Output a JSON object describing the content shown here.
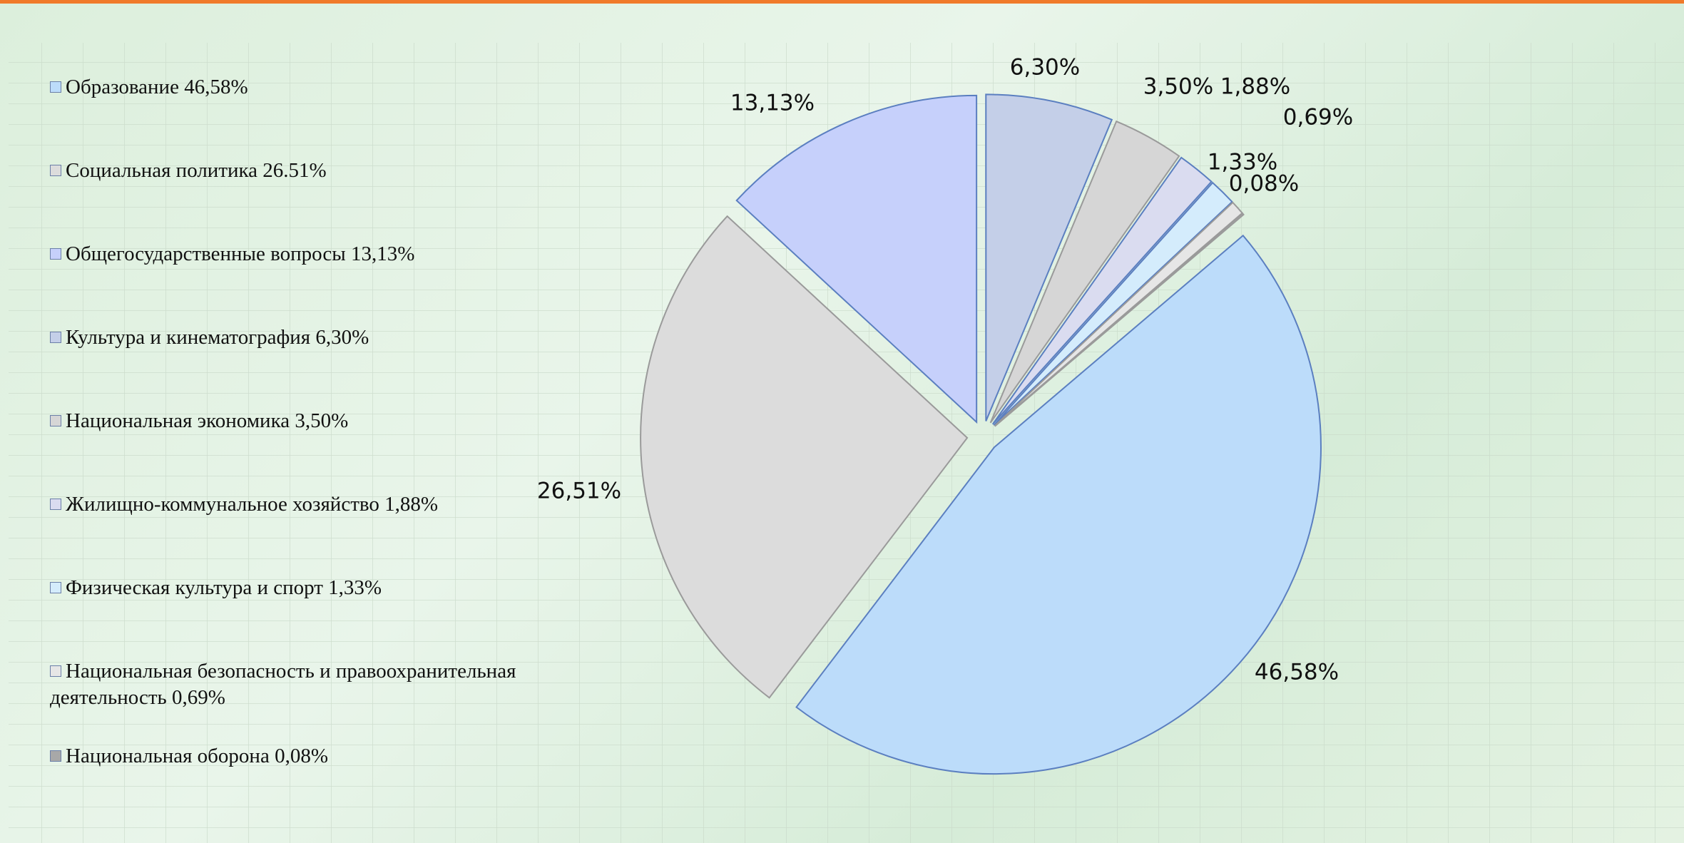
{
  "chart_data": {
    "type": "pie",
    "categories": [
      "Образование 46,58%",
      "Социальная политика 26.51%",
      "Общегосударственные вопросы 13,13%",
      "Культура и кинематография 6,30%",
      "Национальная экономика 3,50%",
      "Жилищно-коммунальное хозяйство 1,88%",
      "Физическая культура и спорт 1,33%",
      "Национальная безопасность и правоохранительная деятельность 0,69%",
      "Национальная оборона 0,08%"
    ],
    "values": [
      46.58,
      26.51,
      13.13,
      6.3,
      3.5,
      1.88,
      1.33,
      0.69,
      0.08
    ],
    "value_labels": [
      "46,58%",
      "26,51%",
      "13,13%",
      "6,30%",
      "3,50%",
      "1,88%",
      "1,33%",
      "0,69%",
      "0,08%"
    ],
    "colors": [
      "#bcdcfa",
      "#dcdcdc",
      "#c6d0fb",
      "#c4cfe8",
      "#d6d6d6",
      "#dadcf0",
      "#d4ecfc",
      "#e6e6e6",
      "#a8a8a8"
    ]
  }
}
